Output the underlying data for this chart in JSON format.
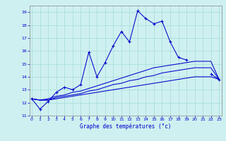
{
  "xlabel": "Graphe des températures (°c)",
  "bg_color": "#cff0f0",
  "grid_color": "#aadddd",
  "line_color": "#0000cc",
  "ylim": [
    11,
    19.5
  ],
  "xlim": [
    -0.3,
    23.3
  ],
  "yticks": [
    11,
    12,
    13,
    14,
    15,
    16,
    17,
    18,
    19
  ],
  "xticks": [
    0,
    1,
    2,
    3,
    4,
    5,
    6,
    7,
    8,
    9,
    10,
    11,
    12,
    13,
    14,
    15,
    16,
    17,
    18,
    19,
    20,
    21,
    22,
    23
  ],
  "hours": [
    0,
    1,
    2,
    3,
    4,
    5,
    6,
    7,
    8,
    9,
    10,
    11,
    12,
    13,
    14,
    15,
    16,
    17,
    18,
    19,
    20,
    21,
    22,
    23
  ],
  "temp1": [
    12.3,
    11.5,
    12.1,
    12.8,
    13.2,
    13.0,
    13.4,
    15.9,
    14.0,
    15.1,
    16.4,
    17.5,
    16.7,
    19.1,
    18.5,
    18.1,
    18.3,
    16.7,
    15.5,
    15.3,
    null,
    null,
    14.2,
    13.8
  ],
  "line2": [
    12.3,
    12.2,
    12.2,
    12.3,
    12.4,
    12.5,
    12.6,
    12.7,
    12.8,
    12.9,
    13.0,
    13.1,
    13.2,
    13.3,
    13.4,
    13.5,
    13.6,
    13.7,
    13.8,
    13.9,
    14.0,
    14.0,
    14.0,
    13.8
  ],
  "line3": [
    12.3,
    12.2,
    12.2,
    12.4,
    12.5,
    12.6,
    12.7,
    12.9,
    13.0,
    13.2,
    13.4,
    13.5,
    13.7,
    13.8,
    14.0,
    14.1,
    14.3,
    14.4,
    14.5,
    14.6,
    14.7,
    14.7,
    14.7,
    13.8
  ],
  "line4": [
    12.3,
    12.2,
    12.3,
    12.5,
    12.6,
    12.8,
    12.9,
    13.1,
    13.3,
    13.5,
    13.7,
    13.9,
    14.1,
    14.3,
    14.5,
    14.7,
    14.8,
    14.9,
    15.0,
    15.1,
    15.2,
    15.2,
    15.2,
    13.8
  ]
}
